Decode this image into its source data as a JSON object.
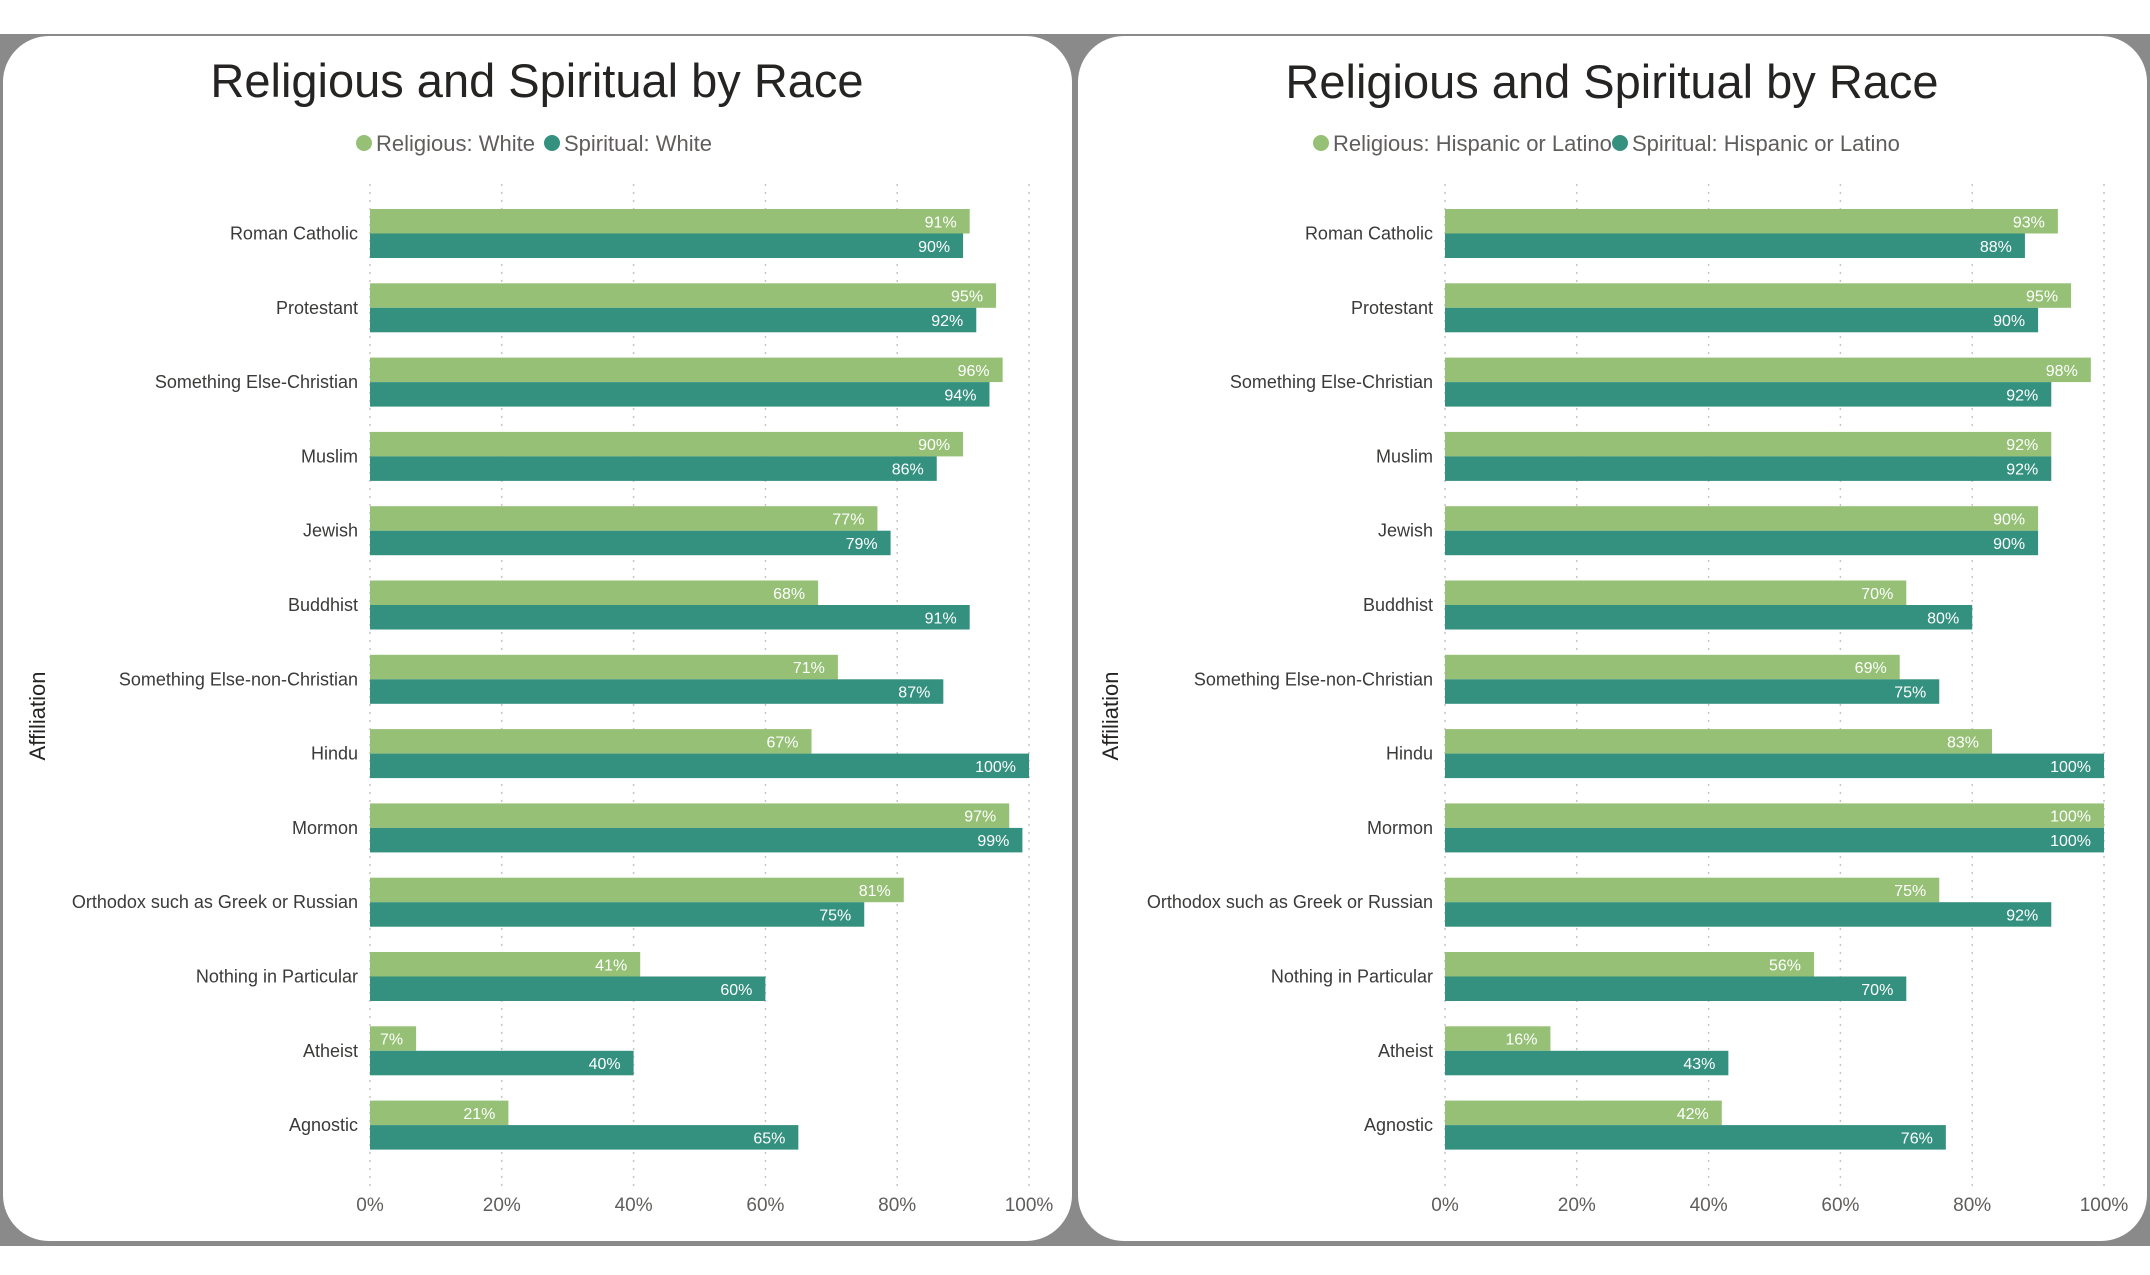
{
  "colors": {
    "religious": "#95c075",
    "spiritual": "#34907f"
  },
  "chart_data": [
    {
      "type": "bar",
      "orientation": "horizontal",
      "title": "Religious and Spiritual by Race",
      "ylabel": "Affiliation",
      "xlabel": "",
      "xlim": [
        0,
        100
      ],
      "x_ticks": [
        "0%",
        "20%",
        "40%",
        "60%",
        "80%",
        "100%"
      ],
      "grid": true,
      "legend": "top-center",
      "categories": [
        "Roman Catholic",
        "Protestant",
        "Something Else-Christian",
        "Muslim",
        "Jewish",
        "Buddhist",
        "Something Else-non-Christian",
        "Hindu",
        "Mormon",
        "Orthodox such as Greek or Russian",
        "Nothing in Particular",
        "Atheist",
        "Agnostic"
      ],
      "series": [
        {
          "name": "Religious: White",
          "values": [
            91,
            95,
            96,
            90,
            77,
            68,
            71,
            67,
            97,
            81,
            41,
            7,
            21
          ]
        },
        {
          "name": "Spiritual: White",
          "values": [
            90,
            92,
            94,
            86,
            79,
            91,
            87,
            100,
            99,
            75,
            60,
            40,
            65
          ]
        }
      ]
    },
    {
      "type": "bar",
      "orientation": "horizontal",
      "title": "Religious and Spiritual by Race",
      "ylabel": "Affiliation",
      "xlabel": "",
      "xlim": [
        0,
        100
      ],
      "x_ticks": [
        "0%",
        "20%",
        "40%",
        "60%",
        "80%",
        "100%"
      ],
      "grid": true,
      "legend": "top-center",
      "categories": [
        "Roman Catholic",
        "Protestant",
        "Something Else-Christian",
        "Muslim",
        "Jewish",
        "Buddhist",
        "Something Else-non-Christian",
        "Hindu",
        "Mormon",
        "Orthodox such as Greek or Russian",
        "Nothing in Particular",
        "Atheist",
        "Agnostic"
      ],
      "series": [
        {
          "name": "Religious: Hispanic or Latino",
          "values": [
            93,
            95,
            98,
            92,
            90,
            70,
            69,
            83,
            100,
            75,
            56,
            16,
            42
          ]
        },
        {
          "name": "Spiritual: Hispanic or Latino",
          "values": [
            88,
            90,
            92,
            92,
            90,
            80,
            75,
            100,
            100,
            92,
            70,
            43,
            76
          ]
        }
      ]
    }
  ]
}
